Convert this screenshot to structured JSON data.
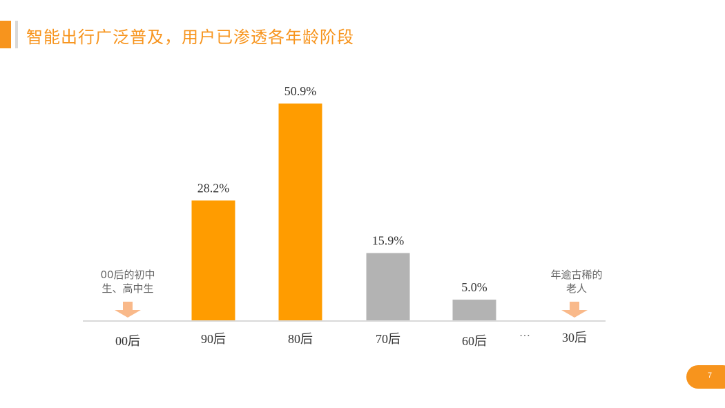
{
  "header": {
    "title": "智能出行广泛普及，用户已渗透各年龄阶段"
  },
  "chart_data": {
    "type": "bar",
    "categories": [
      "00后",
      "90后",
      "80后",
      "70后",
      "60后",
      "30后"
    ],
    "values": [
      null,
      28.2,
      50.9,
      15.9,
      5.0,
      null
    ],
    "value_labels": [
      "",
      "28.2%",
      "50.9%",
      "15.9%",
      "5.0%",
      ""
    ],
    "bar_colors": [
      "",
      "#ff9c00",
      "#ff9c00",
      "#b3b3b3",
      "#b3b3b3",
      ""
    ],
    "ylim": [
      0,
      55
    ],
    "gap_marker": "…",
    "grid": false,
    "annotations": [
      {
        "category": "00后",
        "text": "00后的初中生、高中生",
        "lines": [
          "00后的初中",
          "生、高中生"
        ],
        "marker": "down-arrow-icon"
      },
      {
        "category": "30后",
        "text": "年逾古稀的老人",
        "lines": [
          "年逾古稀的",
          "老人"
        ],
        "marker": "down-arrow-icon"
      }
    ],
    "xlabel": "",
    "ylabel": ""
  },
  "footer": {
    "page_number": "7"
  },
  "colors": {
    "accent": "#f7941d",
    "bar_highlight": "#ff9c00",
    "bar_muted": "#b3b3b3",
    "arrow": "#f9b98a",
    "axis": "#d9d9d9",
    "text": "#333333"
  }
}
